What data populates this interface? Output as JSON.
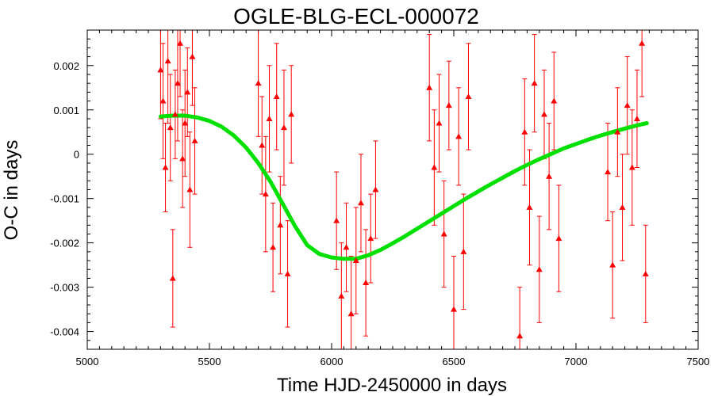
{
  "chart_data": {
    "type": "scatter",
    "title": "OGLE-BLG-ECL-000072",
    "xlabel": "Time HJD-2450000 in days",
    "ylabel": "O-C in days",
    "xlim": [
      5000,
      7500
    ],
    "ylim": [
      -0.0044,
      0.0028
    ],
    "xticks": [
      5000,
      5500,
      6000,
      6500,
      7000,
      7500
    ],
    "xtick_labels": [
      "5000",
      "5500",
      "6000",
      "6500",
      "7000",
      "7500"
    ],
    "yticks": [
      -0.004,
      -0.003,
      -0.002,
      -0.001,
      0,
      0.001,
      0.002
    ],
    "ytick_labels": [
      "-0.004",
      "-0.003",
      "-0.002",
      "-0.001",
      "0",
      "0.001",
      "0.002"
    ],
    "grid": false,
    "colors": {
      "points": "#ff0000",
      "fit": "#00e000",
      "axes": "#000000"
    },
    "series": [
      {
        "type": "scatter-errorbar",
        "marker": "triangle",
        "x": [
          5300,
          5310,
          5320,
          5330,
          5340,
          5350,
          5360,
          5370,
          5380,
          5390,
          5400,
          5410,
          5420,
          5430,
          5440,
          5700,
          5715,
          5730,
          5745,
          5760,
          5775,
          5790,
          5805,
          5820,
          5835,
          6020,
          6040,
          6060,
          6080,
          6100,
          6120,
          6140,
          6160,
          6180,
          6400,
          6420,
          6440,
          6460,
          6480,
          6500,
          6520,
          6540,
          6560,
          6770,
          6790,
          6810,
          6830,
          6850,
          6870,
          6890,
          6910,
          6930,
          7130,
          7150,
          7170,
          7190,
          7210,
          7230,
          7250,
          7270,
          7285
        ],
        "y": [
          0.0019,
          0.0012,
          -0.0003,
          0.0021,
          0.0006,
          -0.0028,
          0.0009,
          0.0016,
          0.0025,
          -0.0001,
          0.0007,
          0.0014,
          -0.0008,
          0.0022,
          0.0003,
          0.0016,
          0.0002,
          -0.0009,
          0.0008,
          -0.0021,
          0.0013,
          -0.0016,
          0.0006,
          -0.0027,
          0.0009,
          -0.0015,
          -0.0032,
          -0.0021,
          -0.0036,
          -0.0024,
          -0.0011,
          -0.0029,
          -0.0019,
          -0.0008,
          0.0015,
          -0.0003,
          0.0007,
          -0.0018,
          0.0011,
          -0.0035,
          0.0004,
          -0.0022,
          0.0013,
          -0.0041,
          0.0005,
          -0.0012,
          0.0016,
          -0.0026,
          0.0009,
          -0.0005,
          0.0012,
          -0.0019,
          -0.0004,
          -0.0025,
          0.0005,
          -0.0012,
          0.0011,
          -0.0003,
          0.0008,
          0.0025,
          -0.0027
        ],
        "yerr": [
          0.0011,
          0.0013,
          0.001,
          0.0014,
          0.0012,
          0.0011,
          0.001,
          0.0013,
          0.0012,
          0.0011,
          0.0012,
          0.001,
          0.0013,
          0.0011,
          0.0012,
          0.0012,
          0.0011,
          0.0013,
          0.0012,
          0.001,
          0.0012,
          0.0011,
          0.0013,
          0.0012,
          0.0011,
          0.0011,
          0.0012,
          0.001,
          0.0013,
          0.0012,
          0.0011,
          0.0012,
          0.001,
          0.0011,
          0.0012,
          0.0013,
          0.0011,
          0.0012,
          0.001,
          0.0012,
          0.0011,
          0.0013,
          0.0012,
          0.0011,
          0.0012,
          0.0013,
          0.0011,
          0.0012,
          0.001,
          0.0012,
          0.0011,
          0.0012,
          0.0011,
          0.0012,
          0.001,
          0.0012,
          0.0011,
          0.0013,
          0.0011,
          0.0012,
          0.0011
        ]
      },
      {
        "type": "line",
        "x": [
          5300,
          5350,
          5400,
          5450,
          5500,
          5550,
          5600,
          5650,
          5700,
          5750,
          5800,
          5850,
          5900,
          5950,
          6000,
          6050,
          6100,
          6150,
          6200,
          6250,
          6300,
          6350,
          6400,
          6450,
          6500,
          6550,
          6600,
          6650,
          6700,
          6750,
          6800,
          6850,
          6900,
          6950,
          7000,
          7050,
          7100,
          7150,
          7200,
          7250,
          7290
        ],
        "y": [
          0.00085,
          0.00087,
          0.00087,
          0.00083,
          0.00075,
          0.00062,
          0.00042,
          0.00015,
          -0.0002,
          -0.00062,
          -0.00112,
          -0.00162,
          -0.00205,
          -0.00225,
          -0.00233,
          -0.00236,
          -0.00236,
          -0.00228,
          -0.00216,
          -0.00201,
          -0.00185,
          -0.00168,
          -0.00151,
          -0.00134,
          -0.00117,
          -0.001,
          -0.00084,
          -0.00068,
          -0.00053,
          -0.00038,
          -0.00024,
          -0.00011,
          1e-05,
          0.00013,
          0.00023,
          0.00033,
          0.00042,
          0.0005,
          0.00058,
          0.00065,
          0.0007
        ]
      }
    ]
  }
}
